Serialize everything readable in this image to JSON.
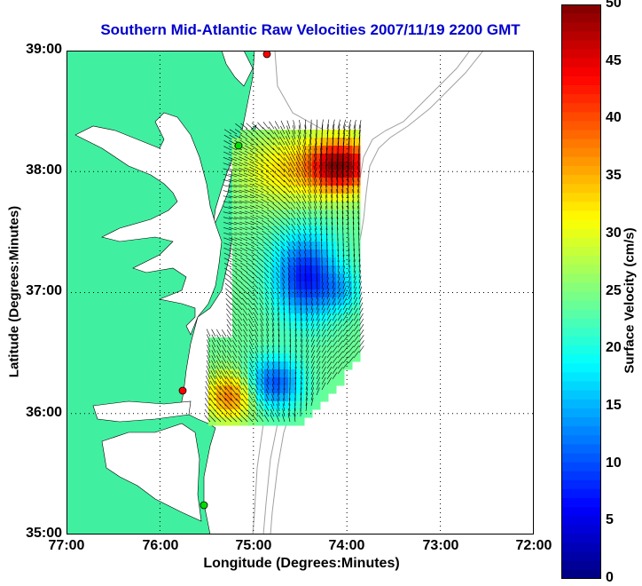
{
  "title": "Southern Mid-Atlantic Raw Velocities 2007/11/19 2200 GMT",
  "axes": {
    "x_label": "Longitude (Degrees:Minutes)",
    "y_label": "Latitude (Degrees:Minutes)",
    "x_ticks": [
      "77:00",
      "76:00",
      "75:00",
      "74:00",
      "73:00",
      "72:00"
    ],
    "y_ticks": [
      "39:00",
      "38:00",
      "37:00",
      "36:00",
      "35:00"
    ],
    "x_range_deg_west": [
      77,
      72
    ],
    "y_range_deg_north": [
      35,
      39
    ],
    "grid": "dotted"
  },
  "colorbar": {
    "label": "Surface Velocity (cm/s)",
    "ticks": [
      "50",
      "45",
      "40",
      "35",
      "30",
      "25",
      "20",
      "15",
      "10",
      "5",
      "0"
    ],
    "range": [
      0,
      50
    ],
    "colormap": "jet"
  },
  "colors": {
    "land": "#40f0a0",
    "title": "#0000cc",
    "bathymetry": "#a0a0a0",
    "station_red": "#ff0000",
    "station_green": "#00dd00"
  }
}
